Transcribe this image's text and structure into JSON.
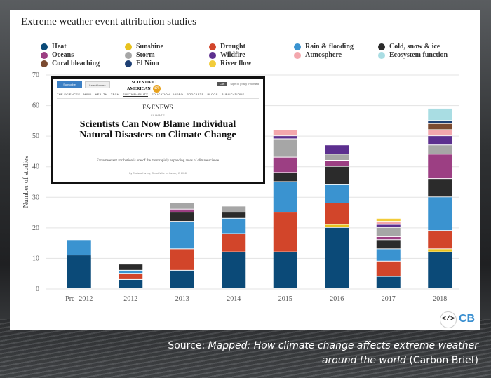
{
  "chart_data": {
    "type": "bar",
    "stacked": true,
    "title": "Extreme weather event attribution studies",
    "xlabel": "",
    "ylabel": "Number of studies",
    "ylim": [
      0,
      70
    ],
    "yticks": [
      0,
      10,
      20,
      30,
      40,
      50,
      60,
      70
    ],
    "categories": [
      "Pre- 2012",
      "2012",
      "2013",
      "2014",
      "2015",
      "2016",
      "2017",
      "2018"
    ],
    "series": [
      {
        "name": "Heat",
        "color": "#0b4a78",
        "values": [
          11,
          3,
          6,
          12,
          12,
          20,
          4,
          12
        ]
      },
      {
        "name": "Sunshine",
        "color": "#e8c21e",
        "values": [
          0,
          0,
          0,
          0,
          0,
          1,
          0,
          1
        ]
      },
      {
        "name": "Drought",
        "color": "#d2452a",
        "values": [
          0,
          2,
          7,
          6,
          13,
          7,
          5,
          6
        ]
      },
      {
        "name": "Rain & flooding",
        "color": "#3a93d0",
        "values": [
          5,
          1,
          9,
          5,
          10,
          6,
          4,
          11
        ]
      },
      {
        "name": "Cold, snow & ice",
        "color": "#2b2b2b",
        "values": [
          0,
          2,
          3,
          2,
          3,
          6,
          3,
          6
        ]
      },
      {
        "name": "Oceans",
        "color": "#9c3f83",
        "values": [
          0,
          0,
          1,
          0,
          5,
          2,
          1,
          8
        ]
      },
      {
        "name": "Storm",
        "color": "#a6a6a6",
        "values": [
          0,
          0,
          2,
          2,
          6,
          2,
          3,
          3
        ]
      },
      {
        "name": "Wildfire",
        "color": "#5c2f8f",
        "values": [
          0,
          0,
          0,
          0,
          1,
          3,
          1,
          3
        ]
      },
      {
        "name": "Atmosphere",
        "color": "#f3a7ad",
        "values": [
          0,
          0,
          0,
          0,
          2,
          0,
          1,
          2
        ]
      },
      {
        "name": "Coral bleaching",
        "color": "#7a4a30",
        "values": [
          0,
          0,
          0,
          0,
          0,
          0,
          0,
          2
        ]
      },
      {
        "name": "El Nino",
        "color": "#1d3f73",
        "values": [
          0,
          0,
          0,
          0,
          0,
          0,
          0,
          1
        ]
      },
      {
        "name": "River flow",
        "color": "#f2cc3a",
        "values": [
          0,
          0,
          0,
          0,
          0,
          0,
          1,
          0
        ]
      },
      {
        "name": "Ecosystem function",
        "color": "#a9dde3",
        "values": [
          0,
          0,
          0,
          0,
          0,
          0,
          0,
          4
        ]
      }
    ],
    "legend": [
      {
        "name": "Heat",
        "color": "#0b4a78"
      },
      {
        "name": "Oceans",
        "color": "#9c3f83"
      },
      {
        "name": "Coral bleaching",
        "color": "#7a4a30"
      },
      {
        "name": "Sunshine",
        "color": "#e8c21e"
      },
      {
        "name": "Storm",
        "color": "#a6a6a6"
      },
      {
        "name": "El Nino",
        "color": "#1d3f73"
      },
      {
        "name": "Drought",
        "color": "#d2452a"
      },
      {
        "name": "Wildfire",
        "color": "#5c2f8f"
      },
      {
        "name": "River flow",
        "color": "#f2cc3a"
      },
      {
        "name": "Rain & flooding",
        "color": "#3a93d0"
      },
      {
        "name": "Atmosphere",
        "color": "#f3a7ad"
      },
      {
        "name": "Cold, snow & ice",
        "color": "#2b2b2b"
      },
      {
        "name": "Ecosystem function",
        "color": "#a9dde3"
      }
    ],
    "legend_position": "top"
  },
  "inset": {
    "subscribe_label": "Subscribe",
    "issue_label": "Latest Issues",
    "brand_line1": "SCIENTIFIC",
    "brand_line2": "AMERICAN",
    "brand_badge": "175",
    "sign_in": "Sign In",
    "stay_informed": "Stay Informed",
    "cart": "Cart",
    "nav": [
      "THE SCIENCES",
      "MIND",
      "HEALTH",
      "TECH",
      "SUSTAINABILITY",
      "EDUCATION",
      "VIDEO",
      "PODCASTS",
      "BLOGS",
      "PUBLICATIONS"
    ],
    "nav_active": "SUSTAINABILITY",
    "section": "E&ENEWS",
    "kicker": "CLIMATE",
    "headline": "Scientists Can Now Blame Individual Natural Disasters on Climate Change",
    "dek": "Extreme event attribution is one of the most rapidly expanding areas of climate science",
    "byline": "By Chelsea Harvey, ClimateWire on January 2, 2018"
  },
  "logo": {
    "embed": "</>",
    "brand": "CB"
  },
  "source": {
    "prefix": "Source: ",
    "title": "Mapped: How climate change affects extreme weather around the world",
    "suffix": " (Carbon Brief)"
  }
}
